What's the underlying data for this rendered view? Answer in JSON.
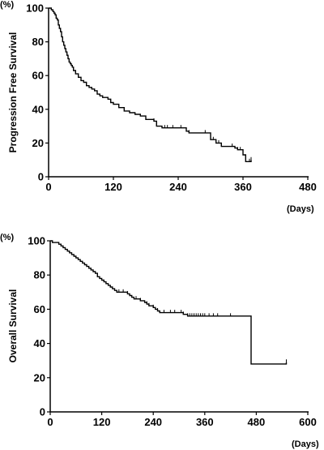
{
  "chart_data": [
    {
      "type": "line",
      "subtype": "kaplan-meier",
      "ylabel": "Progression Free Survival",
      "y_unit": "(%)",
      "x_unit": "(Days)",
      "xlim": [
        0,
        480
      ],
      "ylim": [
        0,
        100
      ],
      "x_ticks": [
        0,
        120,
        240,
        360,
        480
      ],
      "y_ticks": [
        0,
        20,
        40,
        60,
        80,
        100
      ],
      "grid": false,
      "series": [
        {
          "x": [
            0,
            5,
            8,
            10,
            12,
            14,
            16,
            18,
            20,
            22,
            24,
            26,
            28,
            30,
            32,
            34,
            36,
            38,
            40,
            42,
            44,
            46,
            50,
            55,
            60,
            65,
            70,
            75,
            80,
            85,
            90,
            95,
            100,
            110,
            115,
            120,
            130,
            140,
            150,
            160,
            170,
            180,
            195,
            200,
            210,
            220,
            230,
            240,
            255,
            260,
            270,
            280,
            300,
            310,
            320,
            330,
            340,
            345,
            350,
            355,
            360,
            365,
            370,
            375
          ],
          "y": [
            100,
            99,
            98,
            97,
            96,
            94,
            93,
            90,
            88,
            86,
            83,
            80,
            78,
            76,
            74,
            72,
            70,
            68,
            67,
            66,
            65,
            63,
            61,
            59,
            57,
            56,
            54,
            53,
            52,
            51,
            49,
            48,
            47,
            46,
            44,
            43,
            41,
            39,
            38,
            37,
            36,
            34,
            33,
            30,
            29,
            29,
            29,
            29,
            27,
            26,
            26,
            26,
            22,
            20,
            18,
            18,
            18,
            17,
            16,
            16,
            13,
            9,
            9,
            10
          ],
          "censor_x": [
            195,
            200,
            215,
            220,
            230,
            245,
            260,
            290,
            300,
            305,
            315,
            320,
            340,
            350,
            355,
            372,
            375
          ]
        }
      ]
    },
    {
      "type": "line",
      "subtype": "kaplan-meier",
      "ylabel": "Overall Survival",
      "y_unit": "(%)",
      "x_unit": "(Days)",
      "xlim": [
        0,
        600
      ],
      "ylim": [
        0,
        100
      ],
      "x_ticks": [
        0,
        120,
        240,
        360,
        480,
        600
      ],
      "y_ticks": [
        0,
        20,
        40,
        60,
        80,
        100
      ],
      "grid": false,
      "series": [
        {
          "x": [
            0,
            5,
            15,
            20,
            25,
            30,
            35,
            40,
            45,
            50,
            55,
            60,
            65,
            70,
            75,
            80,
            85,
            90,
            95,
            100,
            105,
            110,
            115,
            120,
            125,
            130,
            135,
            140,
            145,
            150,
            155,
            160,
            165,
            170,
            175,
            180,
            185,
            190,
            195,
            200,
            205,
            210,
            215,
            220,
            225,
            230,
            235,
            240,
            245,
            250,
            255,
            260,
            265,
            270,
            280,
            290,
            300,
            310,
            320,
            330,
            340,
            350,
            360,
            380,
            400,
            420,
            440,
            468,
            550
          ],
          "y": [
            100,
            99,
            99,
            98,
            97,
            96,
            95,
            94,
            93,
            92,
            91,
            90,
            89,
            88,
            87,
            86,
            85,
            84,
            83,
            82,
            81,
            79,
            78,
            77,
            76,
            75,
            74,
            73,
            72,
            71,
            70,
            70,
            70,
            70,
            70,
            69,
            68,
            67,
            66,
            66,
            66,
            65,
            65,
            64,
            63,
            62,
            62,
            61,
            60,
            59,
            58,
            58,
            58,
            58,
            58,
            58,
            58,
            57,
            56,
            56,
            56,
            56,
            56,
            56,
            56,
            56,
            56,
            28,
            29
          ],
          "censor_x": [
            160,
            170,
            180,
            200,
            210,
            225,
            230,
            240,
            250,
            265,
            280,
            290,
            305,
            310,
            320,
            325,
            330,
            335,
            340,
            345,
            350,
            355,
            360,
            370,
            380,
            390,
            420,
            550
          ]
        }
      ]
    }
  ]
}
